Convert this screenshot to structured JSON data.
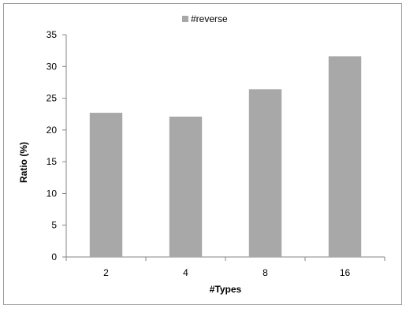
{
  "chart_data": {
    "type": "bar",
    "categories": [
      "2",
      "4",
      "8",
      "16"
    ],
    "series": [
      {
        "name": "#reverse",
        "values": [
          22.7,
          22.1,
          26.4,
          31.6
        ],
        "color": "#a8a8a8"
      }
    ],
    "xlabel": "#Types",
    "ylabel": "Ratio (%)",
    "ylim": [
      0,
      35
    ],
    "yticks": [
      0,
      5,
      10,
      15,
      20,
      25,
      30,
      35
    ],
    "legend_position": "top",
    "grid": false
  }
}
